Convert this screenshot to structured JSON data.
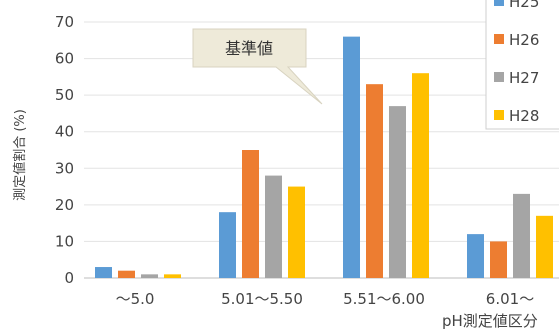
{
  "chart_data": {
    "type": "bar",
    "categories": [
      "～5.0",
      "5.01～5.50",
      "5.51～6.00",
      "6.01～"
    ],
    "series": [
      {
        "name": "H25",
        "color": "#5B9BD5",
        "values": [
          3,
          18,
          66,
          12
        ]
      },
      {
        "name": "H26",
        "color": "#ED7D31",
        "values": [
          2,
          35,
          53,
          10
        ]
      },
      {
        "name": "H27",
        "color": "#A5A5A5",
        "values": [
          1,
          28,
          47,
          23
        ]
      },
      {
        "name": "H28",
        "color": "#FFC000",
        "values": [
          1,
          25,
          56,
          17
        ]
      }
    ],
    "ylabel": "測定値割合 (%)",
    "xlabel": "pH測定値区分",
    "ylim": [
      0,
      70
    ],
    "yticks": [
      0,
      10,
      20,
      30,
      40,
      50,
      60,
      70
    ],
    "grid": true,
    "legend_position": "top-right",
    "annotation": "基準値"
  }
}
